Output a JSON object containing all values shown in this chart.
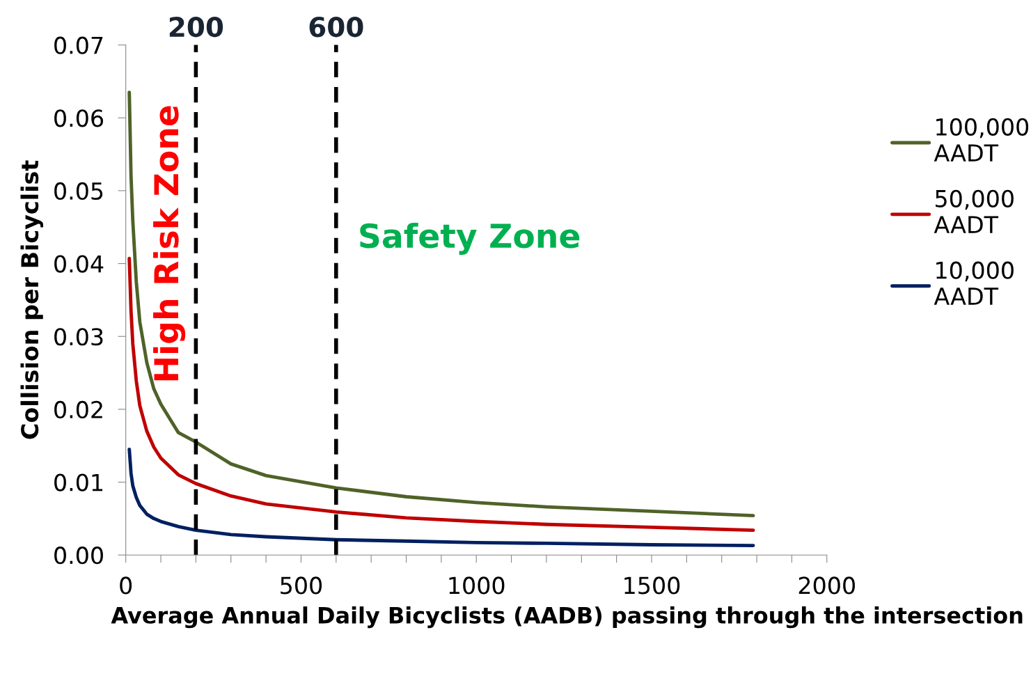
{
  "chart_data": {
    "type": "line",
    "xlabel": "Average Annual Daily Bicyclists (AADB) passing through the intersection",
    "ylabel": "Collision per Bicyclist",
    "series": [
      {
        "name": "100,000\nAADT",
        "color": "#4f6228",
        "x": [
          10,
          15,
          20,
          30,
          40,
          60,
          80,
          100,
          150,
          200,
          300,
          400,
          600,
          800,
          1000,
          1200,
          1500,
          1790
        ],
        "values": [
          0.0635,
          0.052,
          0.0459,
          0.0375,
          0.032,
          0.0264,
          0.0228,
          0.0207,
          0.0168,
          0.0155,
          0.0125,
          0.0109,
          0.0092,
          0.008,
          0.0072,
          0.0066,
          0.006,
          0.0054
        ]
      },
      {
        "name": "50,000\nAADT",
        "color": "#c00000",
        "x": [
          10,
          15,
          20,
          30,
          40,
          60,
          80,
          100,
          150,
          200,
          300,
          400,
          600,
          800,
          1000,
          1200,
          1500,
          1790
        ],
        "values": [
          0.0407,
          0.0335,
          0.029,
          0.0239,
          0.0205,
          0.017,
          0.0148,
          0.0133,
          0.011,
          0.0098,
          0.0081,
          0.007,
          0.0059,
          0.0051,
          0.0046,
          0.0042,
          0.0038,
          0.0034
        ]
      },
      {
        "name": "10,000\nAADT",
        "color": "#002060",
        "x": [
          10,
          15,
          20,
          30,
          40,
          60,
          80,
          100,
          150,
          200,
          300,
          400,
          600,
          800,
          1000,
          1200,
          1500,
          1790
        ],
        "values": [
          0.0145,
          0.0112,
          0.0095,
          0.0079,
          0.0068,
          0.0056,
          0.005,
          0.0046,
          0.0039,
          0.0034,
          0.0028,
          0.0025,
          0.0021,
          0.0019,
          0.0017,
          0.0016,
          0.0014,
          0.0013
        ]
      }
    ],
    "xlim": [
      0,
      2000
    ],
    "xticks": [
      0,
      {
        "value": 100,
        "label": null
      },
      {
        "value": 200,
        "label": null
      },
      {
        "value": 300,
        "label": null
      },
      {
        "value": 400,
        "label": null
      },
      500,
      {
        "value": 600,
        "label": null
      },
      {
        "value": 700,
        "label": null
      },
      {
        "value": 800,
        "label": null
      },
      {
        "value": 900,
        "label": null
      },
      1000,
      {
        "value": 1100,
        "label": null
      },
      {
        "value": 1200,
        "label": null
      },
      {
        "value": 1300,
        "label": null
      },
      {
        "value": 1400,
        "label": null
      },
      1500,
      {
        "value": 1600,
        "label": null
      },
      {
        "value": 1700,
        "label": null
      },
      {
        "value": 1800,
        "label": null
      },
      {
        "value": 1900,
        "label": null
      },
      2000
    ],
    "ylim": [
      0,
      0.07
    ],
    "yticks": [
      {
        "value": 0,
        "label": "0.00"
      },
      0.01,
      {
        "value": 0.02,
        "label": "0.02"
      },
      {
        "value": 0.03,
        "label": "0.03"
      },
      {
        "value": 0.04,
        "label": "0.04"
      },
      {
        "value": 0.05,
        "label": "0.05"
      },
      {
        "value": 0.06,
        "label": "0.06"
      },
      {
        "value": 0.07,
        "label": "0.07"
      }
    ],
    "ref_lines": [
      {
        "axis": "x",
        "value": 200,
        "label": "200",
        "color": "#000000",
        "line_style": "dashed"
      },
      {
        "axis": "x",
        "value": 600,
        "label": "600",
        "color": "#000000",
        "line_style": "dashed"
      }
    ],
    "annotations": [
      "High Risk Zone",
      "Safety Zone"
    ],
    "legend": "right",
    "grid": false,
    "marker": "none",
    "line_style": "solid"
  }
}
